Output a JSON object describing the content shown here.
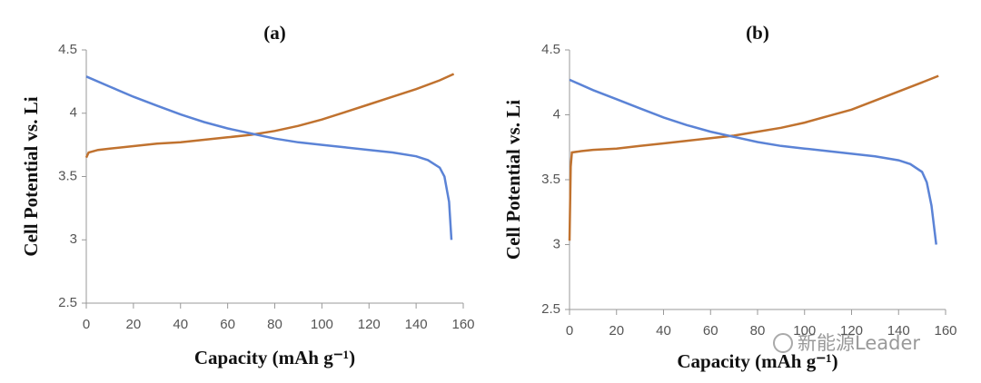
{
  "chart_data": [
    {
      "type": "line",
      "title": "(a)",
      "xlabel": "Capacity  (mAh g⁻¹)",
      "ylabel": "Cell Potential vs. Li",
      "xlim": [
        0,
        160
      ],
      "ylim": [
        2.5,
        4.5
      ],
      "xticks": [
        0,
        20,
        40,
        60,
        80,
        100,
        120,
        140,
        160
      ],
      "yticks": [
        2.5,
        3,
        3.5,
        4,
        4.5
      ],
      "series": [
        {
          "color": "#c0722f",
          "x": [
            0,
            1,
            5,
            10,
            20,
            30,
            40,
            50,
            60,
            70,
            80,
            90,
            100,
            110,
            120,
            130,
            140,
            150,
            156
          ],
          "values": [
            3.65,
            3.69,
            3.71,
            3.72,
            3.74,
            3.76,
            3.77,
            3.79,
            3.81,
            3.83,
            3.86,
            3.9,
            3.95,
            4.01,
            4.07,
            4.13,
            4.19,
            4.26,
            4.31
          ]
        },
        {
          "color": "#5b83d6",
          "x": [
            0,
            10,
            20,
            30,
            40,
            50,
            60,
            70,
            80,
            90,
            100,
            110,
            120,
            130,
            140,
            145,
            150,
            152,
            154,
            155
          ],
          "values": [
            4.29,
            4.21,
            4.13,
            4.06,
            3.99,
            3.93,
            3.88,
            3.84,
            3.8,
            3.77,
            3.75,
            3.73,
            3.71,
            3.69,
            3.66,
            3.63,
            3.57,
            3.5,
            3.3,
            3.0
          ]
        }
      ]
    },
    {
      "type": "line",
      "title": "(b)",
      "xlabel": "Capacity  (mAh g⁻¹)",
      "ylabel": "Cell Potential vs. Li",
      "xlim": [
        0,
        160
      ],
      "ylim": [
        2.5,
        4.5
      ],
      "xticks": [
        0,
        20,
        40,
        60,
        80,
        100,
        120,
        140,
        160
      ],
      "yticks": [
        2.5,
        3,
        3.5,
        4,
        4.5
      ],
      "series": [
        {
          "color": "#c0722f",
          "x": [
            0,
            0.5,
            1,
            5,
            10,
            20,
            30,
            40,
            50,
            60,
            70,
            80,
            90,
            100,
            110,
            120,
            130,
            140,
            150,
            157
          ],
          "values": [
            3.03,
            3.6,
            3.71,
            3.72,
            3.73,
            3.74,
            3.76,
            3.78,
            3.8,
            3.82,
            3.84,
            3.87,
            3.9,
            3.94,
            3.99,
            4.04,
            4.11,
            4.18,
            4.25,
            4.3
          ]
        },
        {
          "color": "#5b83d6",
          "x": [
            0,
            10,
            20,
            30,
            40,
            50,
            60,
            70,
            80,
            90,
            100,
            110,
            120,
            130,
            140,
            145,
            150,
            152,
            154,
            156
          ],
          "values": [
            4.27,
            4.19,
            4.12,
            4.05,
            3.98,
            3.92,
            3.87,
            3.83,
            3.79,
            3.76,
            3.74,
            3.72,
            3.7,
            3.68,
            3.65,
            3.62,
            3.56,
            3.48,
            3.3,
            3.0
          ]
        }
      ]
    }
  ],
  "watermark": "新能源Leader"
}
